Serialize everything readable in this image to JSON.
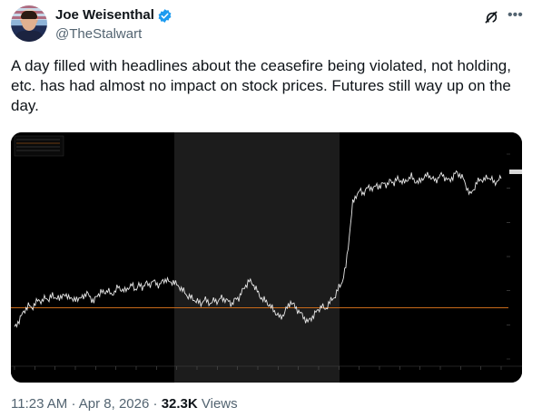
{
  "author": {
    "display_name": "Joe Weisenthal",
    "handle": "@TheStalwart"
  },
  "post": {
    "text": "A day filled with headlines about the ceasefire being violated, not holding, etc. has had almost no impact on stock prices. Futures still way up on the day."
  },
  "meta": {
    "time": "11:23 AM",
    "separator": "·",
    "date": "Apr 8, 2026",
    "views_count": "32.3K",
    "views_label": "Views"
  },
  "colors": {
    "text": "#0f1419",
    "secondary": "#536471",
    "verified": "#1d9bf0",
    "chart_bg": "#000000",
    "price_line": "#e8e8e8",
    "reference_line": "#c86a1a"
  },
  "icons": {
    "verified": "verified-badge-icon",
    "grok": "grok-icon",
    "more": "more-options-icon"
  },
  "chart_data": {
    "type": "line",
    "title": "",
    "xlabel": "",
    "ylabel": "",
    "session_label_visible": true,
    "shaded_sessions": 2,
    "series": [
      {
        "values": [
          0.15,
          0.18,
          0.21,
          0.24,
          0.26,
          0.25,
          0.27,
          0.29,
          0.28,
          0.3,
          0.29,
          0.31,
          0.3,
          0.29,
          0.32,
          0.3,
          0.31,
          0.28,
          0.3,
          0.29,
          0.31,
          0.32,
          0.3,
          0.28,
          0.31,
          0.33,
          0.32,
          0.34,
          0.31,
          0.33,
          0.35,
          0.34,
          0.33,
          0.35,
          0.36,
          0.34,
          0.36,
          0.35,
          0.37,
          0.36,
          0.38,
          0.37,
          0.36,
          0.38,
          0.39,
          0.37,
          0.38,
          0.36,
          0.35,
          0.33,
          0.31,
          0.3,
          0.29,
          0.28,
          0.27,
          0.29,
          0.28,
          0.27,
          0.29,
          0.28,
          0.3,
          0.29,
          0.28,
          0.27,
          0.29,
          0.3,
          0.33,
          0.36,
          0.38,
          0.37,
          0.34,
          0.31,
          0.29,
          0.28,
          0.26,
          0.24,
          0.22,
          0.2,
          0.22,
          0.25,
          0.28,
          0.26,
          0.24,
          0.22,
          0.2,
          0.18,
          0.2,
          0.22,
          0.24,
          0.26,
          0.24,
          0.27,
          0.29,
          0.31,
          0.35,
          0.38,
          0.45,
          0.6,
          0.76,
          0.8,
          0.82,
          0.81,
          0.83,
          0.84,
          0.83,
          0.85,
          0.84,
          0.86,
          0.85,
          0.87,
          0.86,
          0.88,
          0.87,
          0.86,
          0.88,
          0.89,
          0.87,
          0.86,
          0.88,
          0.89,
          0.9,
          0.88,
          0.87,
          0.89,
          0.9,
          0.88,
          0.87,
          0.89,
          0.91,
          0.9,
          0.88,
          0.84,
          0.8,
          0.83,
          0.86,
          0.88,
          0.87,
          0.89,
          0.88,
          0.86,
          0.87,
          0.88
        ]
      }
    ],
    "reference_level": 0.25,
    "ylim": [
      0,
      1
    ]
  }
}
